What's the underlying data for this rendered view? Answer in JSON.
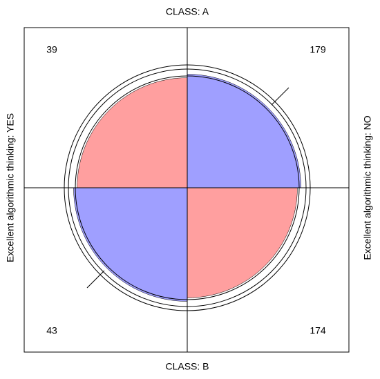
{
  "chart_data": {
    "type": "fourfold",
    "top_label": "CLASS: A",
    "bottom_label": "CLASS: B",
    "left_label": "Excellent algorithmic thinking: YES",
    "right_label": "Excellent algorithmic thinking: NO",
    "values": [
      39,
      179,
      43,
      174
    ],
    "colors": [
      "#ff9f9f",
      "#9f9fff",
      "#9f9fff",
      "#ff9f9f"
    ]
  }
}
